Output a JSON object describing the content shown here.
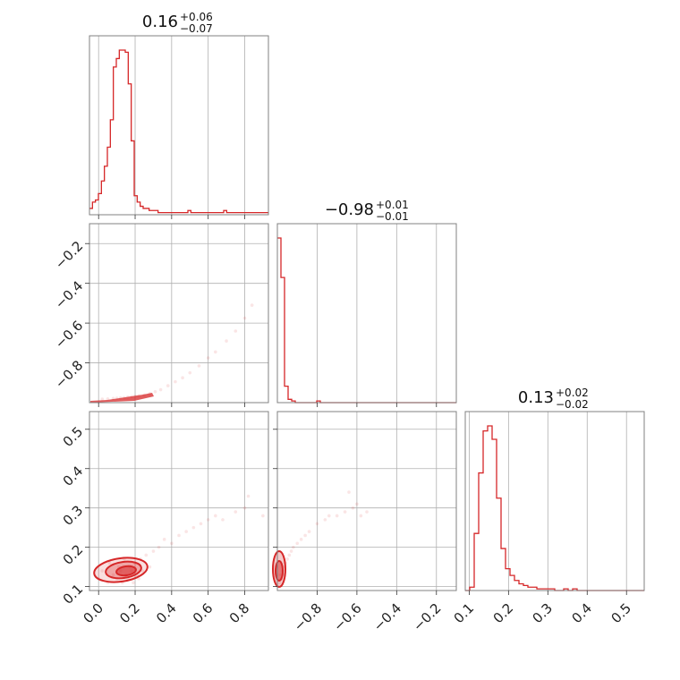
{
  "chart_data": {
    "type": "corner",
    "color": "#d62728",
    "parameters": [
      {
        "median": "0.16",
        "upper_err": "+0.06",
        "lower_err": "−0.07",
        "range": [
          -0.05,
          0.93
        ],
        "ticks": [
          0.0,
          0.2,
          0.4,
          0.6,
          0.8
        ],
        "tick_labels": [
          "0.0",
          "0.2",
          "0.4",
          "0.6",
          "0.8"
        ]
      },
      {
        "median": "−0.98",
        "upper_err": "+0.01",
        "lower_err": "−0.01",
        "range": [
          -1.0,
          -0.1
        ],
        "ticks": [
          -0.8,
          -0.6,
          -0.4,
          -0.2
        ],
        "tick_labels": [
          "−0.8",
          "−0.6",
          "−0.4",
          "−0.2"
        ]
      },
      {
        "median": "0.13",
        "upper_err": "+0.02",
        "lower_err": "−0.02",
        "range": [
          0.09,
          0.545
        ],
        "ticks": [
          0.1,
          0.2,
          0.3,
          0.4,
          0.5
        ],
        "tick_labels": [
          "0.1",
          "0.2",
          "0.3",
          "0.4",
          "0.5"
        ]
      }
    ],
    "histograms": [
      {
        "param": 0,
        "bin_edges": [
          -0.05,
          0.93
        ],
        "counts": [
          3,
          6,
          7,
          10,
          16,
          23,
          32,
          45,
          70,
          74,
          78,
          78,
          77,
          62,
          35,
          9,
          6,
          4,
          3,
          3,
          2,
          2,
          2,
          1,
          1,
          1,
          1,
          1,
          1,
          1,
          1,
          1,
          1,
          2,
          1,
          1,
          1,
          1,
          1,
          1,
          1,
          1,
          1,
          1,
          1,
          2,
          1,
          1,
          1,
          1,
          1,
          1,
          1,
          1,
          1,
          1,
          1,
          1,
          1,
          1
        ]
      },
      {
        "param": 1,
        "bin_edges": [
          -1.0,
          -0.1
        ],
        "counts": [
          100,
          76,
          10,
          2,
          1,
          0,
          0,
          0,
          0,
          0,
          0,
          1,
          0,
          0,
          0,
          0,
          0,
          0,
          0,
          0,
          0,
          0,
          0,
          0,
          0,
          0,
          0,
          0,
          0,
          0,
          0,
          0,
          0,
          0,
          0,
          0,
          0,
          0,
          0,
          0,
          0,
          0,
          0,
          0,
          0,
          0,
          0,
          0,
          0,
          0
        ]
      },
      {
        "param": 2,
        "bin_edges": [
          0.09,
          0.545
        ],
        "counts": [
          0,
          2,
          34,
          70,
          95,
          98,
          90,
          55,
          25,
          13,
          9,
          6,
          4,
          3,
          2,
          2,
          1,
          1,
          1,
          1,
          0,
          0,
          1,
          0,
          1,
          0,
          0,
          0,
          0,
          0,
          0,
          0,
          0,
          0,
          0,
          0,
          0,
          0,
          0,
          0
        ]
      }
    ],
    "scatter_panels": [
      {
        "x_param": 0,
        "y_param": 1,
        "points": [
          [
            0.02,
            -0.982
          ],
          [
            0.05,
            -0.981
          ],
          [
            0.08,
            -0.979
          ],
          [
            0.1,
            -0.978
          ],
          [
            0.12,
            -0.976
          ],
          [
            0.14,
            -0.975
          ],
          [
            0.16,
            -0.972
          ],
          [
            0.18,
            -0.97
          ],
          [
            0.2,
            -0.968
          ],
          [
            0.22,
            -0.966
          ],
          [
            0.25,
            -0.962
          ],
          [
            0.28,
            -0.955
          ],
          [
            0.31,
            -0.945
          ],
          [
            0.34,
            -0.935
          ],
          [
            0.38,
            -0.915
          ],
          [
            0.42,
            -0.895
          ],
          [
            0.46,
            -0.875
          ],
          [
            0.5,
            -0.85
          ],
          [
            0.55,
            -0.815
          ],
          [
            0.6,
            -0.775
          ],
          [
            0.64,
            -0.745
          ],
          [
            0.7,
            -0.69
          ],
          [
            0.75,
            -0.64
          ],
          [
            0.8,
            -0.575
          ],
          [
            0.84,
            -0.51
          ]
        ]
      },
      {
        "x_param": 0,
        "y_param": 2,
        "points": [
          [
            0.0,
            0.12
          ],
          [
            0.02,
            0.14
          ],
          [
            0.05,
            0.11
          ],
          [
            0.06,
            0.16
          ],
          [
            0.08,
            0.13
          ],
          [
            0.1,
            0.12
          ],
          [
            0.11,
            0.15
          ],
          [
            0.12,
            0.14
          ],
          [
            0.13,
            0.11
          ],
          [
            0.14,
            0.17
          ],
          [
            0.15,
            0.13
          ],
          [
            0.16,
            0.12
          ],
          [
            0.17,
            0.15
          ],
          [
            0.18,
            0.14
          ],
          [
            0.19,
            0.11
          ],
          [
            0.2,
            0.16
          ],
          [
            0.21,
            0.13
          ],
          [
            0.22,
            0.12
          ],
          [
            0.23,
            0.17
          ],
          [
            0.24,
            0.14
          ],
          [
            0.26,
            0.18
          ],
          [
            0.28,
            0.15
          ],
          [
            0.3,
            0.19
          ],
          [
            0.33,
            0.2
          ],
          [
            0.36,
            0.22
          ],
          [
            0.4,
            0.21
          ],
          [
            0.44,
            0.23
          ],
          [
            0.48,
            0.24
          ],
          [
            0.52,
            0.25
          ],
          [
            0.56,
            0.26
          ],
          [
            0.6,
            0.27
          ],
          [
            0.64,
            0.28
          ],
          [
            0.68,
            0.27
          ],
          [
            0.75,
            0.29
          ],
          [
            0.8,
            0.3
          ],
          [
            0.82,
            0.33
          ],
          [
            0.9,
            0.28
          ]
        ]
      },
      {
        "x_param": 1,
        "y_param": 2,
        "points": [
          [
            -0.99,
            0.11
          ],
          [
            -0.985,
            0.13
          ],
          [
            -0.98,
            0.12
          ],
          [
            -0.975,
            0.14
          ],
          [
            -0.97,
            0.15
          ],
          [
            -0.965,
            0.13
          ],
          [
            -0.96,
            0.16
          ],
          [
            -0.95,
            0.17
          ],
          [
            -0.94,
            0.18
          ],
          [
            -0.93,
            0.19
          ],
          [
            -0.92,
            0.2
          ],
          [
            -0.9,
            0.21
          ],
          [
            -0.88,
            0.22
          ],
          [
            -0.86,
            0.23
          ],
          [
            -0.84,
            0.24
          ],
          [
            -0.8,
            0.26
          ],
          [
            -0.76,
            0.27
          ],
          [
            -0.74,
            0.28
          ],
          [
            -0.7,
            0.28
          ],
          [
            -0.66,
            0.29
          ],
          [
            -0.62,
            0.3
          ],
          [
            -0.58,
            0.28
          ],
          [
            -0.55,
            0.29
          ],
          [
            -0.6,
            0.31
          ],
          [
            -0.64,
            0.34
          ]
        ]
      }
    ]
  }
}
